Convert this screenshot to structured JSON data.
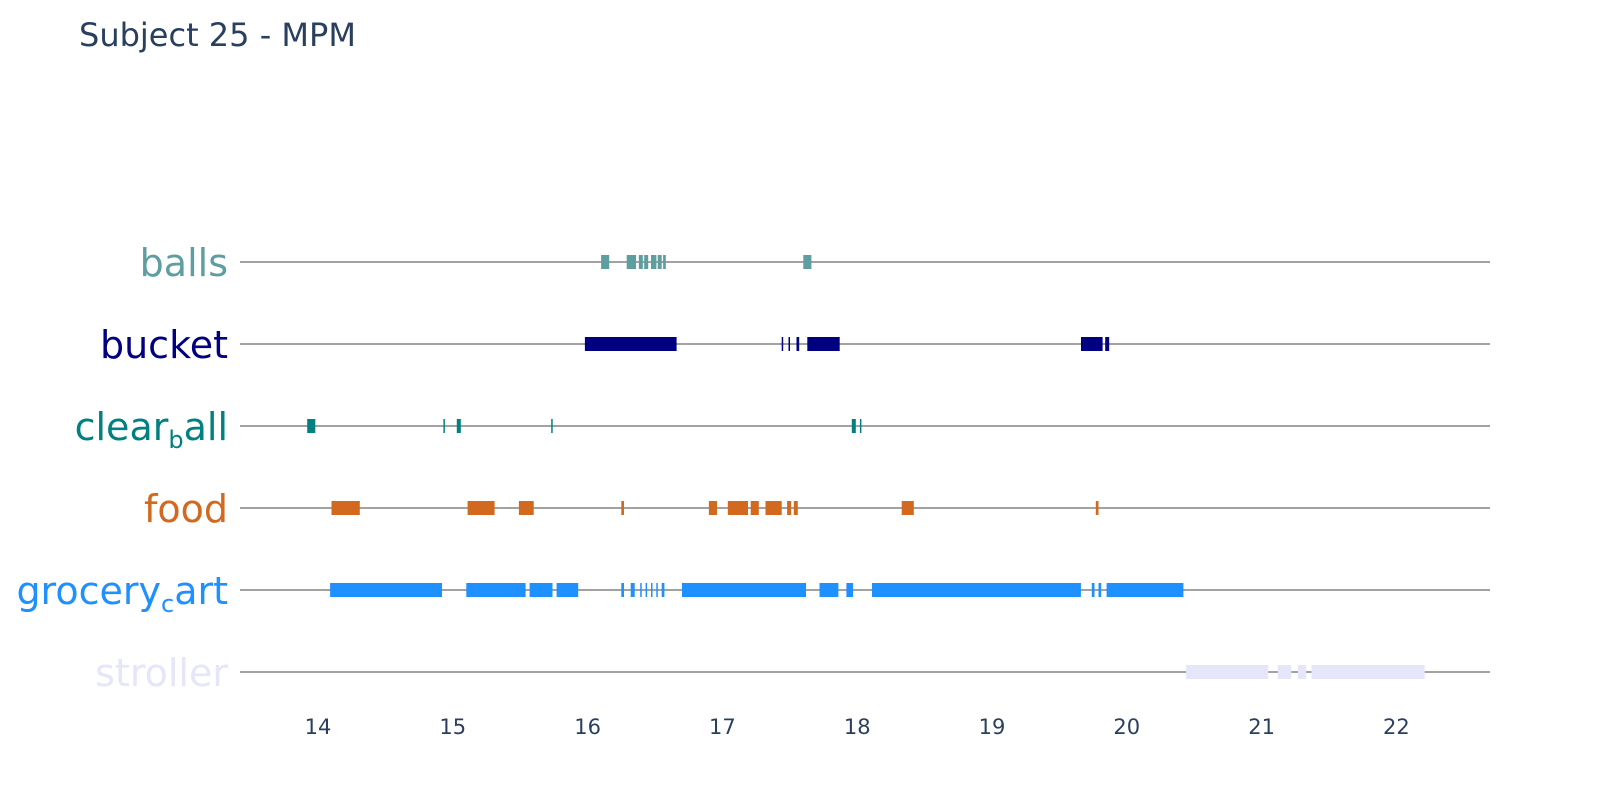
{
  "chart_data": {
    "type": "timeline",
    "title": "Subject 25 - MPM",
    "xlabel": "",
    "ylabel": "",
    "xlim": [
      13.45,
      22.7
    ],
    "x_ticks": [
      "14",
      "15",
      "16",
      "17",
      "18",
      "19",
      "20",
      "21",
      "22"
    ],
    "categories": [
      {
        "label": "balls",
        "label_base": "balls",
        "label_sub": "",
        "label_rest": "",
        "color": "#5f9ea0"
      },
      {
        "label": "bucket",
        "label_base": "bucket",
        "label_sub": "",
        "label_rest": "",
        "color": "#000080"
      },
      {
        "label": "clear_ball",
        "label_base": "clear",
        "label_sub": "b",
        "label_rest": "all",
        "color": "#008080"
      },
      {
        "label": "food",
        "label_base": "food",
        "label_sub": "",
        "label_rest": "",
        "color": "#d2691e"
      },
      {
        "label": "grocery_cart",
        "label_base": "grocery",
        "label_sub": "c",
        "label_rest": "art",
        "color": "#1e90ff"
      },
      {
        "label": "stroller",
        "label_base": "stroller",
        "label_sub": "",
        "label_rest": "",
        "color": "#e6e6fa"
      }
    ],
    "series": [
      {
        "name": "balls",
        "intervals": [
          [
            16.1,
            16.16
          ],
          [
            16.29,
            16.36
          ],
          [
            16.38,
            16.41
          ],
          [
            16.42,
            16.45
          ],
          [
            16.47,
            16.51
          ],
          [
            16.52,
            16.55
          ],
          [
            16.56,
            16.58
          ],
          [
            17.6,
            17.66
          ]
        ]
      },
      {
        "name": "bucket",
        "intervals": [
          [
            15.98,
            16.66
          ],
          [
            17.44,
            17.45
          ],
          [
            17.49,
            17.5
          ],
          [
            17.55,
            17.57
          ],
          [
            17.63,
            17.87
          ],
          [
            19.66,
            19.82
          ],
          [
            19.84,
            19.87
          ]
        ]
      },
      {
        "name": "clear_ball",
        "intervals": [
          [
            13.92,
            13.98
          ],
          [
            14.93,
            14.94
          ],
          [
            15.03,
            15.06
          ],
          [
            15.73,
            15.74
          ],
          [
            17.96,
            17.99
          ],
          [
            18.02,
            18.03
          ]
        ]
      },
      {
        "name": "food",
        "intervals": [
          [
            14.1,
            14.31
          ],
          [
            15.11,
            15.31
          ],
          [
            15.49,
            15.6
          ],
          [
            16.25,
            16.27
          ],
          [
            16.9,
            16.96
          ],
          [
            17.04,
            17.19
          ],
          [
            17.21,
            17.27
          ],
          [
            17.32,
            17.44
          ],
          [
            17.48,
            17.51
          ],
          [
            17.53,
            17.56
          ],
          [
            18.33,
            18.42
          ],
          [
            19.77,
            19.79
          ]
        ]
      },
      {
        "name": "grocery_cart",
        "intervals": [
          [
            14.09,
            14.92
          ],
          [
            15.1,
            15.54
          ],
          [
            15.57,
            15.74
          ],
          [
            15.77,
            15.93
          ],
          [
            16.25,
            16.27
          ],
          [
            16.32,
            16.35
          ],
          [
            16.39,
            16.4
          ],
          [
            16.43,
            16.44
          ],
          [
            16.47,
            16.48
          ],
          [
            16.51,
            16.52
          ],
          [
            16.55,
            16.57
          ],
          [
            16.7,
            17.62
          ],
          [
            17.72,
            17.86
          ],
          [
            17.92,
            17.97
          ],
          [
            18.11,
            19.66
          ],
          [
            19.74,
            19.76
          ],
          [
            19.79,
            19.81
          ],
          [
            19.85,
            20.42
          ]
        ]
      },
      {
        "name": "stroller",
        "intervals": [
          [
            20.44,
            21.05
          ],
          [
            21.12,
            21.22
          ],
          [
            21.27,
            21.33
          ],
          [
            21.37,
            22.21
          ]
        ]
      }
    ],
    "grid": false,
    "legend": "none"
  }
}
